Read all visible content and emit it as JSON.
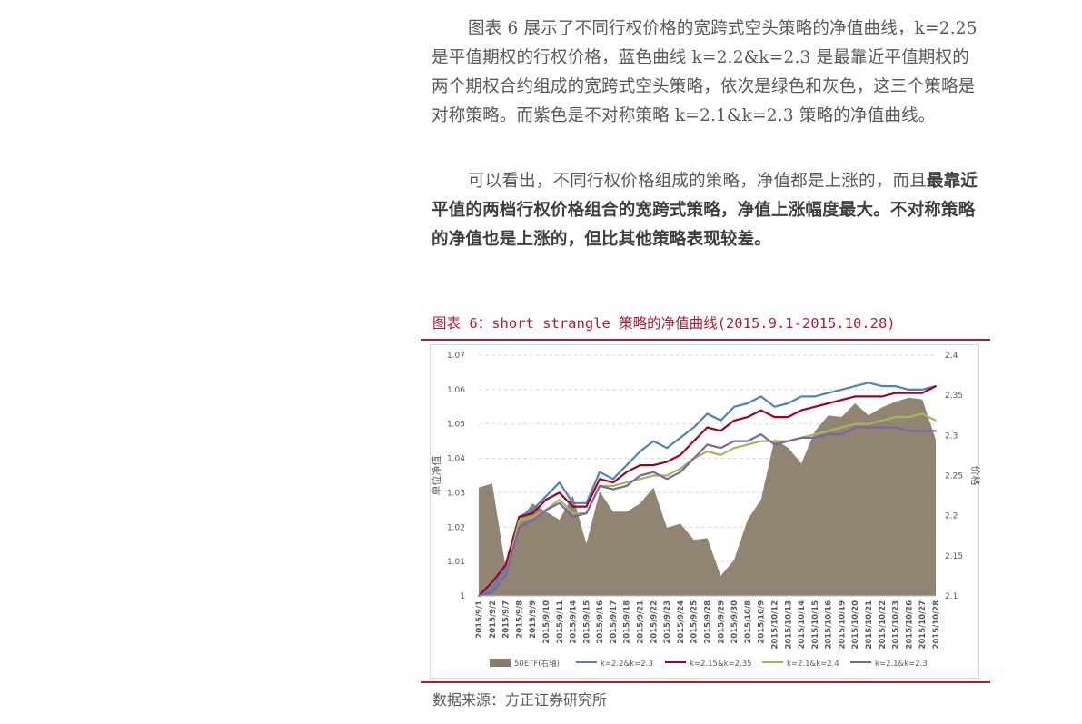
{
  "text": {
    "p1_a": "图表 6 展示了不同行权价格的宽跨式空头策略的净值曲线，k=2.25 是平值期权的行权价格，蓝色曲线 k=2.2&k=2.3 是最靠近平值期权的两个期权合约组成的宽跨式空头策略，依次是绿色和灰色，这三个策略是对称策略。而紫色是不对称策略 k=2.1&k=2.3 策略的净值曲线。",
    "p2_a": "可以看出，不同行权价格组成的策略，净值都是上涨的，而且",
    "p2_b": "最靠近平值的两档行权价格组合的宽跨式策略，净值上涨幅度最大。不对称策略的净值也是上涨的，但比其他策略表现较差。",
    "figure_title": "图表 6：short strangle 策略的净值曲线(2015.9.1-2015.10.28)",
    "source": "数据来源：方正证券研究所"
  },
  "chart_data": {
    "type": "line",
    "xlabel": "",
    "ylabel": "单位净值",
    "y2label": "价格",
    "ylim": [
      1,
      1.07
    ],
    "yticks": [
      "1",
      "1.01",
      "1.02",
      "1.03",
      "1.04",
      "1.05",
      "1.06",
      "1.07"
    ],
    "y2lim": [
      2.1,
      2.4
    ],
    "y2ticks": [
      "2.1",
      "2.15",
      "2.2",
      "2.25",
      "2.3",
      "2.35",
      "2.4"
    ],
    "grid": true,
    "legend": "bottom",
    "categories": [
      "2015/9/1",
      "2015/9/2",
      "2015/9/7",
      "2015/9/8",
      "2015/9/9",
      "2015/9/10",
      "2015/9/11",
      "2015/9/14",
      "2015/9/15",
      "2015/9/16",
      "2015/9/17",
      "2015/9/18",
      "2015/9/21",
      "2015/9/22",
      "2015/9/23",
      "2015/9/24",
      "2015/9/25",
      "2015/9/28",
      "2015/9/29",
      "2015/9/30",
      "2015/10/8",
      "2015/10/9",
      "2015/10/12",
      "2015/10/13",
      "2015/10/14",
      "2015/10/15",
      "2015/10/16",
      "2015/10/19",
      "2015/10/20",
      "2015/10/21",
      "2015/10/22",
      "2015/10/23",
      "2015/10/26",
      "2015/10/27",
      "2015/10/28"
    ],
    "area": {
      "name": "50ETF(右轴)",
      "color": "#8b7d6b",
      "values": [
        2.235,
        2.24,
        2.135,
        2.195,
        2.215,
        2.205,
        2.195,
        2.225,
        2.165,
        2.23,
        2.205,
        2.205,
        2.215,
        2.235,
        2.185,
        2.19,
        2.17,
        2.172,
        2.125,
        2.145,
        2.195,
        2.22,
        2.295,
        2.285,
        2.265,
        2.305,
        2.325,
        2.323,
        2.34,
        2.325,
        2.335,
        2.342,
        2.347,
        2.345,
        2.295
      ]
    },
    "series": [
      {
        "name": "k=2.2&k=2.3",
        "color": "#4f81bd",
        "values": [
          1,
          1.002,
          1.008,
          1.023,
          1.025,
          1.029,
          1.033,
          1.027,
          1.027,
          1.036,
          1.034,
          1.038,
          1.042,
          1.045,
          1.043,
          1.046,
          1.049,
          1.053,
          1.051,
          1.055,
          1.056,
          1.058,
          1.055,
          1.056,
          1.058,
          1.058,
          1.059,
          1.06,
          1.061,
          1.062,
          1.061,
          1.061,
          1.06,
          1.06,
          1.061
        ]
      },
      {
        "name": "k=2.15&k=2.35",
        "color": "#a50021",
        "values": [
          1,
          1.004,
          1.009,
          1.023,
          1.024,
          1.028,
          1.03,
          1.026,
          1.026,
          1.034,
          1.033,
          1.036,
          1.038,
          1.038,
          1.039,
          1.041,
          1.045,
          1.049,
          1.048,
          1.051,
          1.052,
          1.054,
          1.052,
          1.052,
          1.054,
          1.055,
          1.056,
          1.057,
          1.058,
          1.058,
          1.058,
          1.059,
          1.059,
          1.059,
          1.061
        ]
      },
      {
        "name": "k=2.1&k=2.4",
        "color": "#9bbb59",
        "values": [
          1,
          1.001,
          1.006,
          1.022,
          1.023,
          1.025,
          1.028,
          1.024,
          1.024,
          1.032,
          1.032,
          1.033,
          1.034,
          1.035,
          1.035,
          1.037,
          1.04,
          1.042,
          1.041,
          1.043,
          1.044,
          1.045,
          1.045,
          1.045,
          1.046,
          1.047,
          1.048,
          1.049,
          1.05,
          1.05,
          1.051,
          1.052,
          1.052,
          1.053,
          1.051
        ]
      },
      {
        "name": "k=2.1&k=2.3",
        "color": "#8064a2",
        "values": [
          1,
          1.001,
          1.006,
          1.02,
          1.022,
          1.025,
          1.027,
          1.023,
          1.024,
          1.032,
          1.031,
          1.032,
          1.035,
          1.036,
          1.034,
          1.036,
          1.04,
          1.044,
          1.043,
          1.045,
          1.045,
          1.047,
          1.044,
          1.045,
          1.046,
          1.046,
          1.047,
          1.047,
          1.049,
          1.049,
          1.049,
          1.049,
          1.048,
          1.048,
          1.048
        ]
      }
    ]
  }
}
